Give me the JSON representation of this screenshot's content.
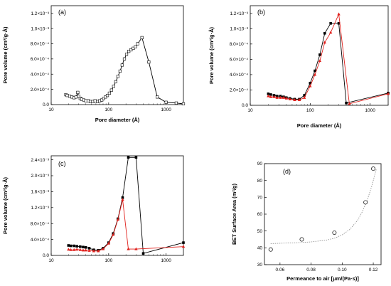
{
  "chart_data": [
    {
      "type": "line",
      "panel_label": "(a)",
      "xlabel": "Pore diameter (Å)",
      "ylabel": "Pore volume (cm³/g·Å)",
      "x_scale": "log",
      "xlim": [
        10,
        2000
      ],
      "ylim": [
        0,
        0.0013
      ],
      "x_ticks": [
        10,
        100,
        1000
      ],
      "x_tick_labels": [
        "10",
        "100",
        "1000"
      ],
      "y_ticks": [
        0,
        0.0002,
        0.0004,
        0.0006,
        0.0008,
        0.001,
        0.0012
      ],
      "y_tick_labels": [
        "0.0",
        "2.0×10⁻⁴",
        "4.0×10⁻⁴",
        "6.0×10⁻⁴",
        "8.0×10⁻⁴",
        "1.0×10⁻³",
        "1.2×10⁻³"
      ],
      "series": [
        {
          "marker": "open-square",
          "color": "#000000",
          "x": [
            18,
            19,
            21,
            23,
            25,
            27,
            29,
            30,
            32,
            34,
            37,
            40,
            44,
            48,
            53,
            58,
            64,
            70,
            76,
            82,
            88,
            95,
            103,
            112,
            122,
            133,
            145,
            158,
            172,
            188,
            205,
            224,
            245,
            268,
            293,
            320,
            380,
            500,
            700,
            1000,
            1500,
            2000
          ],
          "y": [
            0.00013,
            0.00012,
            0.00011,
            0.0001,
            9e-05,
            0.0001,
            0.00016,
            0.00011,
            8e-05,
            7e-05,
            6e-05,
            5e-05,
            5e-05,
            4e-05,
            4e-05,
            5e-05,
            4e-05,
            5e-05,
            6e-05,
            8e-05,
            0.0001,
            0.00012,
            0.00015,
            0.00019,
            0.00024,
            0.0003,
            0.00037,
            0.00044,
            0.00052,
            0.0006,
            0.00066,
            0.0007,
            0.00072,
            0.00074,
            0.00076,
            0.0008,
            0.00088,
            0.00056,
            0.0001,
            3e-05,
            2e-05,
            1e-05
          ]
        }
      ]
    },
    {
      "type": "line",
      "panel_label": "(b)",
      "xlabel": "Pore diameter (Å)",
      "ylabel": "Pore volume (cm³/g·Å)",
      "x_scale": "log",
      "xlim": [
        10,
        2000
      ],
      "ylim": [
        0,
        0.0013
      ],
      "x_ticks": [
        10,
        100,
        1000
      ],
      "x_tick_labels": [
        "10",
        "100",
        "1000"
      ],
      "y_ticks": [
        0,
        0.0002,
        0.0004,
        0.0006,
        0.0008,
        0.001,
        0.0012
      ],
      "y_tick_labels": [
        "0.0",
        "2.0×10⁻⁴",
        "4.0×10⁻⁴",
        "6.0×10⁻⁴",
        "8.0×10⁻⁴",
        "1.0×10⁻³",
        "1.2×10⁻³"
      ],
      "series": [
        {
          "marker": "filled-square",
          "color": "#000000",
          "x": [
            20,
            22,
            25,
            28,
            32,
            36,
            40,
            46,
            55,
            66,
            80,
            100,
            120,
            145,
            175,
            220,
            300,
            400,
            2000
          ],
          "y": [
            0.00015,
            0.00014,
            0.00013,
            0.00012,
            0.00012,
            0.00011,
            0.0001,
            9e-05,
            8e-05,
            8e-05,
            0.00013,
            0.00029,
            0.00045,
            0.00066,
            0.00094,
            0.00107,
            0.00107,
            3e-05,
            0.00016
          ]
        },
        {
          "marker": "filled-triangle",
          "color": "#e0201c",
          "x": [
            20,
            22,
            25,
            28,
            32,
            36,
            40,
            46,
            55,
            66,
            80,
            100,
            120,
            145,
            175,
            220,
            300,
            450,
            2000
          ],
          "y": [
            0.00012,
            0.00011,
            0.00011,
            0.0001,
            0.0001,
            0.0001,
            9e-05,
            8e-05,
            7e-05,
            7e-05,
            0.0001,
            0.00025,
            0.0004,
            0.00058,
            0.00082,
            0.00095,
            0.00119,
            2e-05,
            0.00015
          ]
        }
      ]
    },
    {
      "type": "line",
      "panel_label": "(c)",
      "xlabel": "",
      "ylabel": "Pore volume (cm³/g·Å)",
      "x_scale": "log",
      "xlim": [
        10,
        2000
      ],
      "ylim": [
        0,
        0.0025
      ],
      "x_ticks": [
        10,
        100,
        1000
      ],
      "x_tick_labels": [
        "10",
        "100",
        "1000"
      ],
      "y_ticks": [
        0,
        0.0004,
        0.0008,
        0.0012,
        0.0016,
        0.002,
        0.0024
      ],
      "y_tick_labels": [
        "0.0",
        "4.0×10⁻⁴",
        "8.0×10⁻⁴",
        "1.2×10⁻³",
        "1.6×10⁻³",
        "2.0×10⁻³",
        "2.4×10⁻³"
      ],
      "series": [
        {
          "marker": "filled-square",
          "color": "#000000",
          "x": [
            20,
            22,
            25,
            28,
            32,
            36,
            40,
            46,
            55,
            66,
            80,
            100,
            120,
            145,
            175,
            220,
            300,
            400,
            2000
          ],
          "y": [
            0.00025,
            0.00024,
            0.00024,
            0.00023,
            0.00022,
            0.00021,
            0.0002,
            0.00018,
            0.00014,
            0.00013,
            0.00018,
            0.00032,
            0.00055,
            0.00092,
            0.00145,
            0.00246,
            0.00246,
            5e-05,
            0.00032
          ]
        },
        {
          "marker": "filled-triangle",
          "color": "#e0201c",
          "x": [
            20,
            22,
            25,
            28,
            32,
            36,
            40,
            46,
            55,
            66,
            80,
            100,
            120,
            145,
            175,
            220,
            300,
            2000
          ],
          "y": [
            0.00015,
            0.00014,
            0.00014,
            0.00015,
            0.00014,
            0.00013,
            0.00013,
            0.00012,
            0.00011,
            0.00011,
            0.00016,
            0.0003,
            0.00052,
            0.0009,
            0.0014,
            0.00016,
            0.00016,
            0.00022
          ]
        }
      ]
    },
    {
      "type": "scatter",
      "panel_label": "(d)",
      "xlabel": "Permeance to air [μm/(Pa·s)]",
      "ylabel": "BET Surface Area (m²/g)",
      "x_scale": "linear",
      "xlim": [
        0.05,
        0.125
      ],
      "ylim": [
        30,
        90
      ],
      "x_ticks": [
        0.06,
        0.08,
        0.1,
        0.12
      ],
      "x_tick_labels": [
        "0.06",
        "0.08",
        "0.10",
        "0.12"
      ],
      "y_ticks": [
        30,
        40,
        50,
        60,
        70,
        80,
        90
      ],
      "y_tick_labels": [
        "30",
        "40",
        "50",
        "60",
        "70",
        "80",
        "90"
      ],
      "series": [
        {
          "marker": "open-circle",
          "color": "#000000",
          "x": [
            0.054,
            0.074,
            0.095,
            0.115,
            0.12
          ],
          "y": [
            39,
            45,
            49,
            67,
            87
          ]
        }
      ],
      "fit": {
        "style": "dotted",
        "color": "#888888",
        "x": [
          0.054,
          0.06,
          0.07,
          0.08,
          0.09,
          0.095,
          0.1,
          0.105,
          0.11,
          0.113,
          0.116,
          0.119,
          0.122
        ],
        "y": [
          42.5,
          42.7,
          43.0,
          43.5,
          44.6,
          45.7,
          47.7,
          51.0,
          56.5,
          61.5,
          68.0,
          76.5,
          87.0
        ]
      }
    }
  ]
}
